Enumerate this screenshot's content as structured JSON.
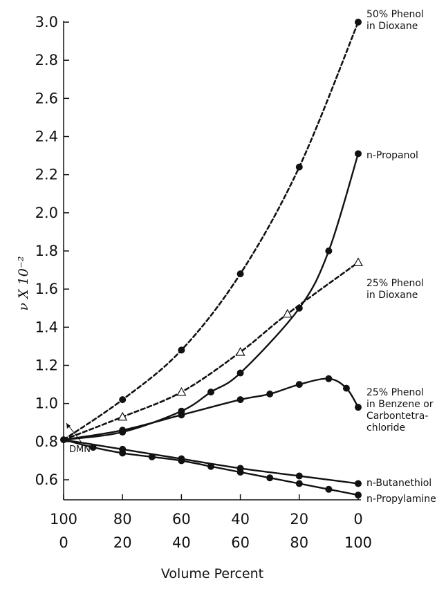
{
  "chart_data": {
    "type": "line",
    "title": "",
    "xlabel": "Volume Percent",
    "ylabel": "ν X 10⁻²",
    "ylim": [
      0.5,
      3.0
    ],
    "xlim": [
      100,
      0
    ],
    "y_ticks": [
      "0.6",
      "0.8",
      "1.0",
      "1.2",
      "1.4",
      "1.6",
      "1.8",
      "2.0",
      "2.2",
      "2.4",
      "2.6",
      "2.8",
      "3.0"
    ],
    "x_ticks_top": [
      "100",
      "80",
      "60",
      "40",
      "20",
      "0"
    ],
    "x_ticks_bottom": [
      "0",
      "20",
      "40",
      "60",
      "80",
      "100"
    ],
    "annotation": "DMN",
    "series": [
      {
        "name": "50% Phenol in Dioxane",
        "label_lines": [
          "50% Phenol",
          "in Dioxane"
        ],
        "marker": "filled-circle",
        "style": "dashed",
        "points": [
          [
            100,
            0.81
          ],
          [
            80,
            1.02
          ],
          [
            60,
            1.28
          ],
          [
            40,
            1.68
          ],
          [
            20,
            2.24
          ],
          [
            0,
            3.0
          ]
        ]
      },
      {
        "name": "n-Propanol",
        "label_lines": [
          "n-Propanol"
        ],
        "marker": "filled-circle",
        "style": "solid",
        "points": [
          [
            100,
            0.81
          ],
          [
            80,
            0.85
          ],
          [
            60,
            0.96
          ],
          [
            50,
            1.06
          ],
          [
            40,
            1.16
          ],
          [
            20,
            1.5
          ],
          [
            10,
            1.8
          ],
          [
            0,
            2.31
          ]
        ]
      },
      {
        "name": "25% Phenol in Dioxane",
        "label_lines": [
          "25% Phenol",
          "in Dioxane"
        ],
        "marker": "open-triangle",
        "style": "dashed",
        "points": [
          [
            100,
            0.81
          ],
          [
            80,
            0.93
          ],
          [
            60,
            1.06
          ],
          [
            40,
            1.27
          ],
          [
            24,
            1.47
          ],
          [
            0,
            1.74
          ]
        ]
      },
      {
        "name": "25% Phenol in Benzene or Carbontetrachloride",
        "label_lines": [
          "25% Phenol",
          "in Benzene or",
          "Carbontetra-",
          "chloride"
        ],
        "marker": "filled-circle",
        "style": "solid",
        "points": [
          [
            100,
            0.81
          ],
          [
            80,
            0.86
          ],
          [
            60,
            0.94
          ],
          [
            40,
            1.02
          ],
          [
            30,
            1.05
          ],
          [
            20,
            1.1
          ],
          [
            10,
            1.13
          ],
          [
            4,
            1.08
          ],
          [
            0,
            0.98
          ]
        ]
      },
      {
        "name": "n-Butanethiol",
        "label_lines": [
          "n-Butanethiol"
        ],
        "marker": "filled-circle",
        "style": "solid",
        "points": [
          [
            100,
            0.81
          ],
          [
            80,
            0.76
          ],
          [
            60,
            0.71
          ],
          [
            40,
            0.66
          ],
          [
            20,
            0.62
          ],
          [
            0,
            0.58
          ]
        ]
      },
      {
        "name": "n-Propylamine",
        "label_lines": [
          "n-Propylamine"
        ],
        "marker": "filled-circle",
        "style": "solid",
        "points": [
          [
            100,
            0.81
          ],
          [
            90,
            0.77
          ],
          [
            80,
            0.74
          ],
          [
            70,
            0.72
          ],
          [
            60,
            0.7
          ],
          [
            50,
            0.67
          ],
          [
            40,
            0.64
          ],
          [
            30,
            0.61
          ],
          [
            20,
            0.58
          ],
          [
            10,
            0.55
          ],
          [
            0,
            0.52
          ]
        ]
      }
    ]
  }
}
